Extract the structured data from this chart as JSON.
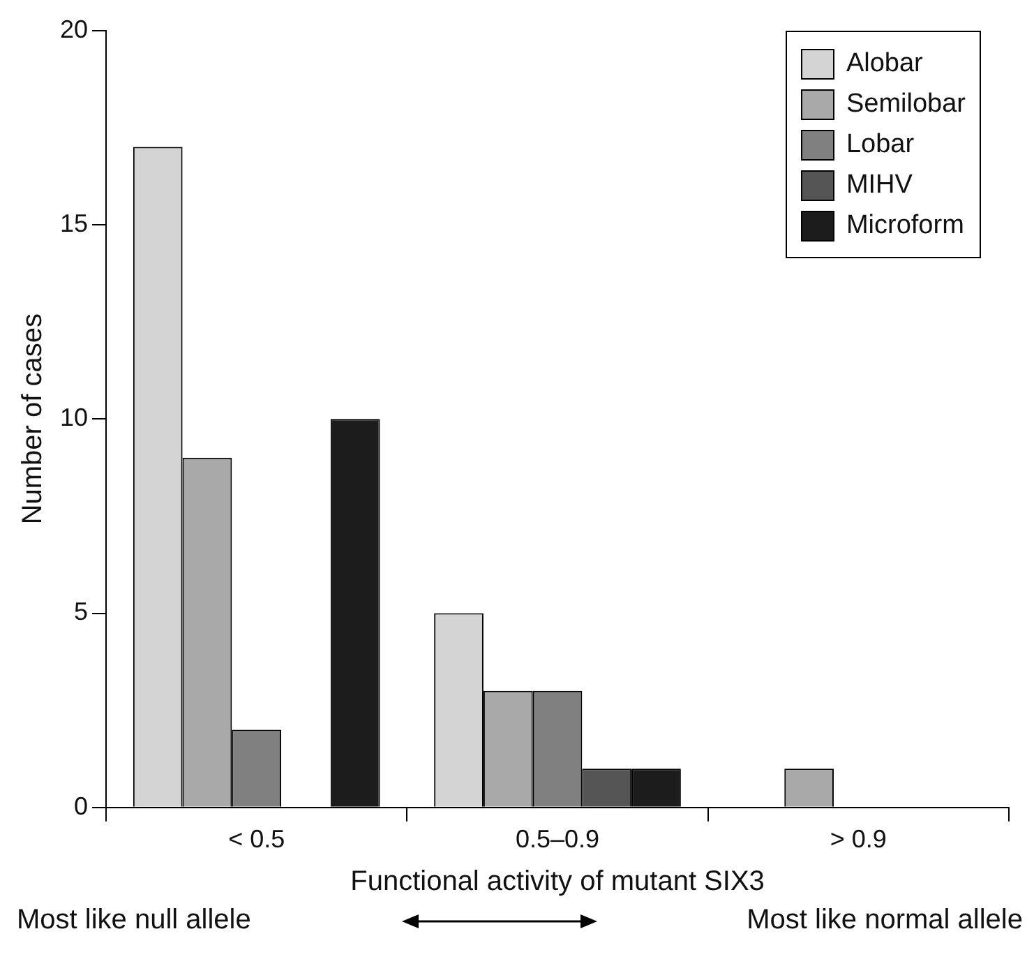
{
  "chart_data": {
    "type": "bar",
    "xlabel": "Functional activity of mutant SIX3",
    "ylabel": "Number of cases",
    "categories": [
      "< 0.5",
      "0.5–0.9",
      "> 0.9"
    ],
    "series": [
      {
        "name": "Alobar",
        "color": "#d4d4d4",
        "values": [
          17,
          5,
          0
        ]
      },
      {
        "name": "Semilobar",
        "color": "#a9a9a9",
        "values": [
          9,
          3,
          1
        ]
      },
      {
        "name": "Lobar",
        "color": "#808080",
        "values": [
          2,
          3,
          0
        ]
      },
      {
        "name": "MIHV",
        "color": "#555555",
        "values": [
          0,
          1,
          0
        ]
      },
      {
        "name": "Microform",
        "color": "#1c1c1c",
        "values": [
          10,
          1,
          0
        ]
      }
    ],
    "ylim": [
      0,
      20
    ],
    "yticks": [
      0,
      5,
      10,
      15,
      20
    ],
    "grid": false,
    "legend": "top right",
    "annotations": [
      "Most like null allele",
      "Most like normal allele"
    ]
  }
}
